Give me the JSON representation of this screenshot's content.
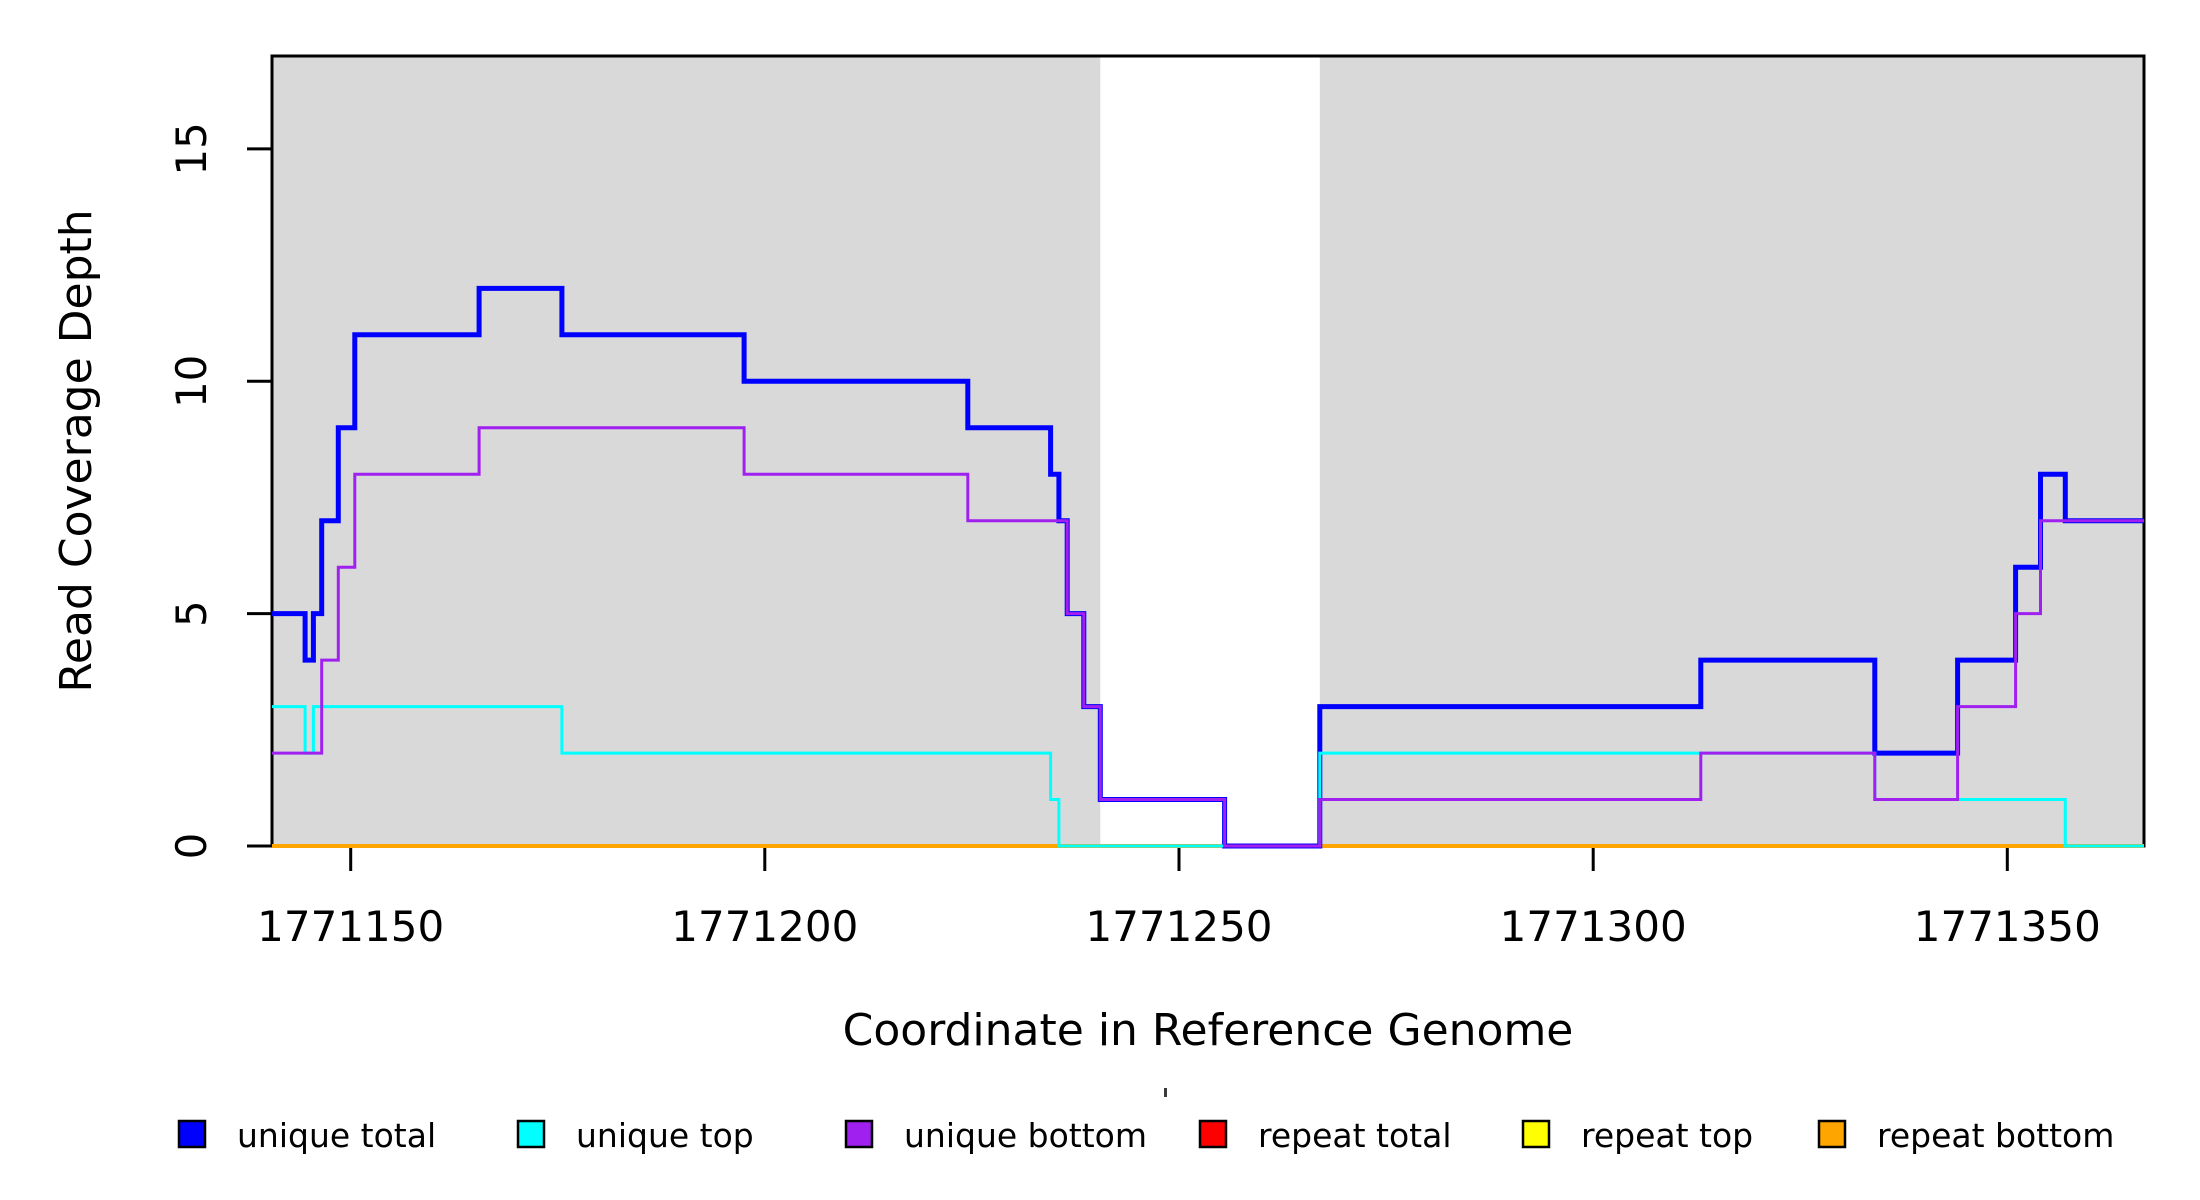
{
  "chart_data": {
    "type": "line",
    "subtype": "step-post",
    "title": "",
    "xlabel": "Coordinate in Reference Genome",
    "ylabel": "Read Coverage Depth",
    "xlim": [
      1771140.5,
      1771366.5
    ],
    "ylim": [
      0,
      17
    ],
    "grid": false,
    "x_ticks": [
      1771150,
      1771200,
      1771250,
      1771300,
      1771350
    ],
    "x_tick_labels": [
      "1771150",
      "1771200",
      "1771250",
      "1771300",
      "1771350"
    ],
    "y_ticks": [
      0,
      5,
      10,
      15
    ],
    "y_tick_labels": [
      "0",
      "5",
      "10",
      "15"
    ],
    "plot_background": "#ffffff",
    "shaded_regions": [
      {
        "name": "shaded-region-left",
        "x0": 1771140.5,
        "x1": 1771240.5,
        "color": "#d9d9d9"
      },
      {
        "name": "shaded-region-right",
        "x0": 1771267.0,
        "x1": 1771366.5,
        "color": "#d9d9d9"
      }
    ],
    "series": [
      {
        "name": "repeat total",
        "color": "#ff0000",
        "line_width": 2.5,
        "steps": [
          [
            1771140.5,
            0
          ]
        ],
        "x_end": 1771366.5
      },
      {
        "name": "repeat top",
        "color": "#ffff00",
        "line_width": 2.5,
        "steps": [
          [
            1771140.5,
            0
          ]
        ],
        "x_end": 1771366.5
      },
      {
        "name": "repeat bottom",
        "color": "#ffa500",
        "line_width": 4,
        "steps": [
          [
            1771140.5,
            0
          ]
        ],
        "x_end": 1771366.5
      },
      {
        "name": "unique total",
        "color": "#0000ff",
        "line_width": 5,
        "steps": [
          [
            1771140.5,
            5
          ],
          [
            1771144.5,
            4
          ],
          [
            1771145.5,
            5
          ],
          [
            1771146.5,
            7
          ],
          [
            1771148.5,
            9
          ],
          [
            1771150.5,
            11
          ],
          [
            1771165.5,
            12
          ],
          [
            1771175.5,
            11
          ],
          [
            1771197.5,
            10
          ],
          [
            1771224.5,
            9
          ],
          [
            1771234.5,
            8
          ],
          [
            1771235.5,
            7
          ],
          [
            1771236.5,
            5
          ],
          [
            1771238.5,
            3
          ],
          [
            1771240.5,
            1
          ],
          [
            1771255.5,
            0
          ],
          [
            1771267,
            3
          ],
          [
            1771313,
            4
          ],
          [
            1771334,
            2
          ],
          [
            1771344,
            4
          ],
          [
            1771351,
            6
          ],
          [
            1771354,
            8
          ],
          [
            1771357,
            7
          ]
        ],
        "x_end": 1771366.5
      },
      {
        "name": "unique top",
        "color": "#00ffff",
        "line_width": 3,
        "steps": [
          [
            1771140.5,
            3
          ],
          [
            1771144.5,
            2
          ],
          [
            1771145.5,
            3
          ],
          [
            1771175.5,
            2
          ],
          [
            1771234.5,
            1
          ],
          [
            1771235.5,
            0
          ],
          [
            1771267,
            2
          ],
          [
            1771334,
            1
          ],
          [
            1771357,
            0
          ]
        ],
        "x_end": 1771366.5
      },
      {
        "name": "unique bottom",
        "color": "#a020f0",
        "line_width": 3,
        "steps": [
          [
            1771140.5,
            2
          ],
          [
            1771146.5,
            4
          ],
          [
            1771148.5,
            6
          ],
          [
            1771150.5,
            8
          ],
          [
            1771165.5,
            9
          ],
          [
            1771197.5,
            8
          ],
          [
            1771224.5,
            7
          ],
          [
            1771236.5,
            5
          ],
          [
            1771238.5,
            3
          ],
          [
            1771240.5,
            1
          ],
          [
            1771255.5,
            0
          ],
          [
            1771267,
            1
          ],
          [
            1771313,
            2
          ],
          [
            1771334,
            1
          ],
          [
            1771344,
            3
          ],
          [
            1771351,
            5
          ],
          [
            1771354,
            7
          ]
        ],
        "x_end": 1771366.5
      }
    ],
    "legend": {
      "position": "bottom",
      "entries": [
        {
          "label": "unique total",
          "color": "#0000ff"
        },
        {
          "label": "unique top",
          "color": "#00ffff"
        },
        {
          "label": "unique bottom",
          "color": "#a020f0"
        },
        {
          "label": "repeat total",
          "color": "#ff0000"
        },
        {
          "label": "repeat top",
          "color": "#ffff00"
        },
        {
          "label": "repeat bottom",
          "color": "#ffa500"
        }
      ]
    }
  }
}
